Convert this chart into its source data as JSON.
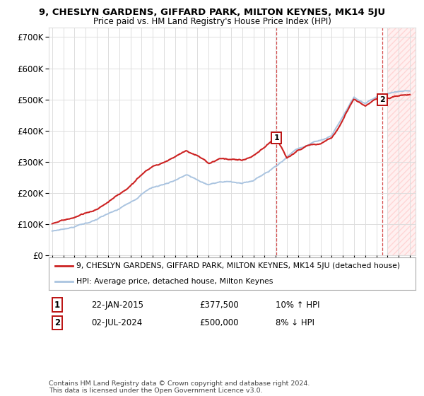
{
  "title": "9, CHESLYN GARDENS, GIFFARD PARK, MILTON KEYNES, MK14 5JU",
  "subtitle": "Price paid vs. HM Land Registry's House Price Index (HPI)",
  "ylabel_ticks": [
    "£0",
    "£100K",
    "£200K",
    "£300K",
    "£400K",
    "£500K",
    "£600K",
    "£700K"
  ],
  "ytick_values": [
    0,
    100000,
    200000,
    300000,
    400000,
    500000,
    600000,
    700000
  ],
  "ylim": [
    0,
    730000
  ],
  "xlim_start": 1994.7,
  "xlim_end": 2027.5,
  "hpi_color": "#aac4e0",
  "price_color": "#cc2222",
  "marker1_x": 2015.06,
  "marker1_y": 377500,
  "marker1_label": "1",
  "marker2_x": 2024.5,
  "marker2_y": 500000,
  "marker2_label": "2",
  "legend_line1": "9, CHESLYN GARDENS, GIFFARD PARK, MILTON KEYNES, MK14 5JU (detached house)",
  "legend_line2": "HPI: Average price, detached house, Milton Keynes",
  "ann1_date": "22-JAN-2015",
  "ann1_price": "£377,500",
  "ann1_hpi": "10% ↑ HPI",
  "ann2_date": "02-JUL-2024",
  "ann2_price": "£500,000",
  "ann2_hpi": "8% ↓ HPI",
  "footer": "Contains HM Land Registry data © Crown copyright and database right 2024.\nThis data is licensed under the Open Government Licence v3.0.",
  "background_color": "#ffffff",
  "grid_color": "#dddddd"
}
